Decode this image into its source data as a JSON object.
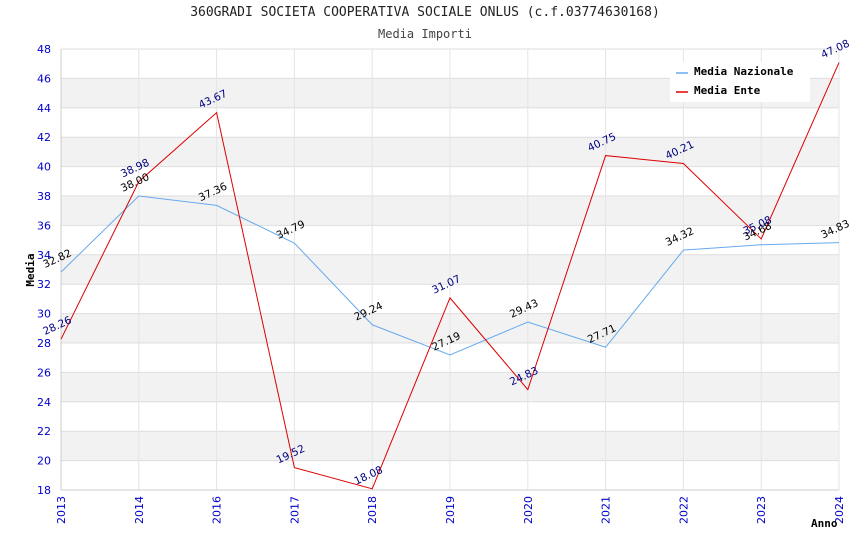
{
  "chart_data": {
    "type": "line",
    "title": "360GRADI SOCIETA COOPERATIVA SOCIALE ONLUS (c.f.03774630168)",
    "subtitle": "Media Importi",
    "xlabel": "Anno",
    "ylabel": "Media",
    "categories": [
      "2013",
      "2014",
      "2016",
      "2017",
      "2018",
      "2019",
      "2020",
      "2021",
      "2022",
      "2023",
      "2024"
    ],
    "ylim": [
      18,
      48
    ],
    "ytick_step": 2,
    "grid": true,
    "legend_position": "top-right",
    "series": [
      {
        "name": "Media Nazionale",
        "color": "#66aaee",
        "values": [
          32.82,
          38.0,
          37.36,
          34.79,
          29.24,
          27.19,
          29.43,
          27.71,
          34.32,
          34.68,
          34.83
        ],
        "labels": [
          "32.82",
          "38.00",
          "37.36",
          "34.79",
          "29.24",
          "27.19",
          "29.43",
          "27.71",
          "34.32",
          "34.68",
          "34.83"
        ]
      },
      {
        "name": "Media Ente",
        "color": "#dd0000",
        "values": [
          28.26,
          38.98,
          43.67,
          19.52,
          18.08,
          31.07,
          24.83,
          40.75,
          40.21,
          35.08,
          47.08
        ],
        "labels": [
          "28.26",
          "38.98",
          "43.67",
          "19.52",
          "18.08",
          "31.07",
          "24.83",
          "40.75",
          "40.21",
          "35.08",
          "47.08"
        ]
      }
    ]
  }
}
